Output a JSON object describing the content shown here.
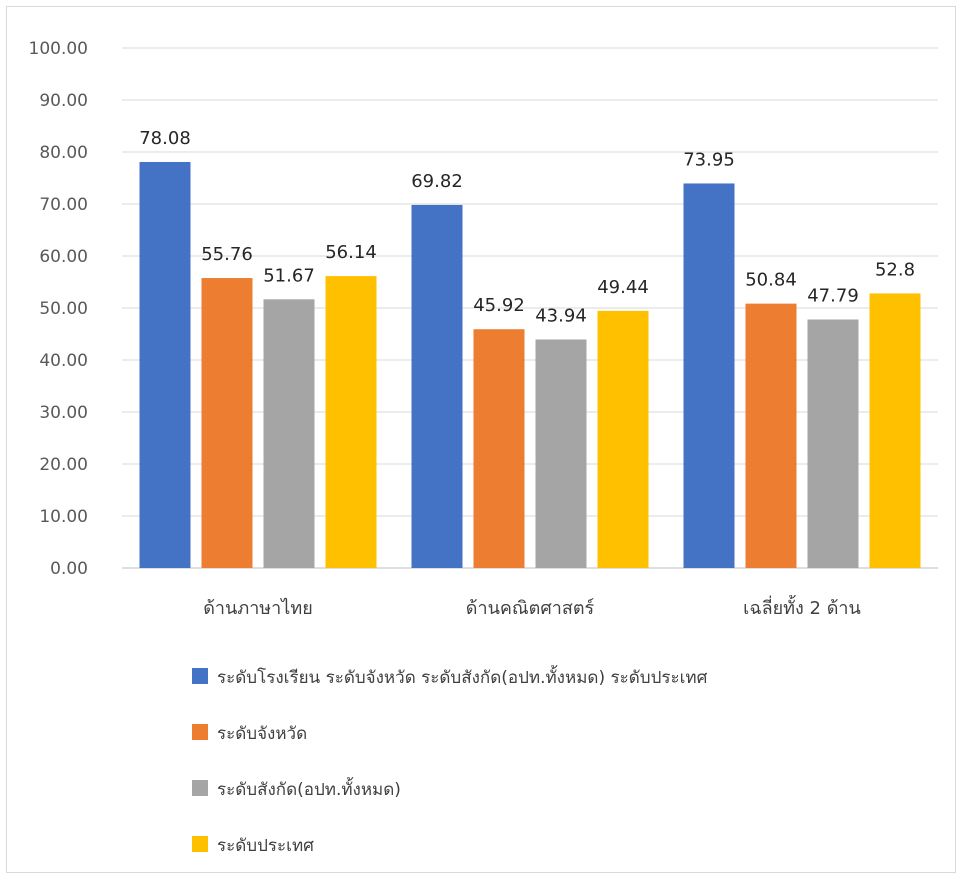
{
  "chart_data": {
    "type": "bar",
    "categories": [
      "ด้านภาษาไทย",
      "ด้านคณิตศาสตร์",
      "เฉลี่ยทั้ง 2 ด้าน"
    ],
    "series": [
      {
        "name": "ระดับโรงเรียน ระดับจังหวัด ระดับสังกัด(อปท.ทั้งหมด) ระดับประเทศ",
        "color": "#4472C4",
        "values": [
          78.08,
          69.82,
          73.95
        ],
        "labels": [
          "78.08",
          "69.82",
          "73.95"
        ]
      },
      {
        "name": "ระดับจังหวัด",
        "color": "#ED7D31",
        "values": [
          55.76,
          45.92,
          50.84
        ],
        "labels": [
          "55.76",
          "45.92",
          "50.84"
        ]
      },
      {
        "name": "ระดับสังกัด(อปท.ทั้งหมด)",
        "color": "#A5A5A5",
        "values": [
          51.67,
          43.94,
          47.79
        ],
        "labels": [
          "51.67",
          "43.94",
          "47.79"
        ]
      },
      {
        "name": "ระดับประเทศ",
        "color": "#FFC000",
        "values": [
          56.14,
          49.44,
          52.8
        ],
        "labels": [
          "56.14",
          "49.44",
          "52.8"
        ]
      }
    ],
    "yticks": [
      "0.00",
      "10.00",
      "20.00",
      "30.00",
      "40.00",
      "50.00",
      "60.00",
      "70.00",
      "80.00",
      "90.00",
      "100.00"
    ],
    "ylim": [
      0,
      100
    ],
    "grid": true,
    "legend": "bottom"
  }
}
